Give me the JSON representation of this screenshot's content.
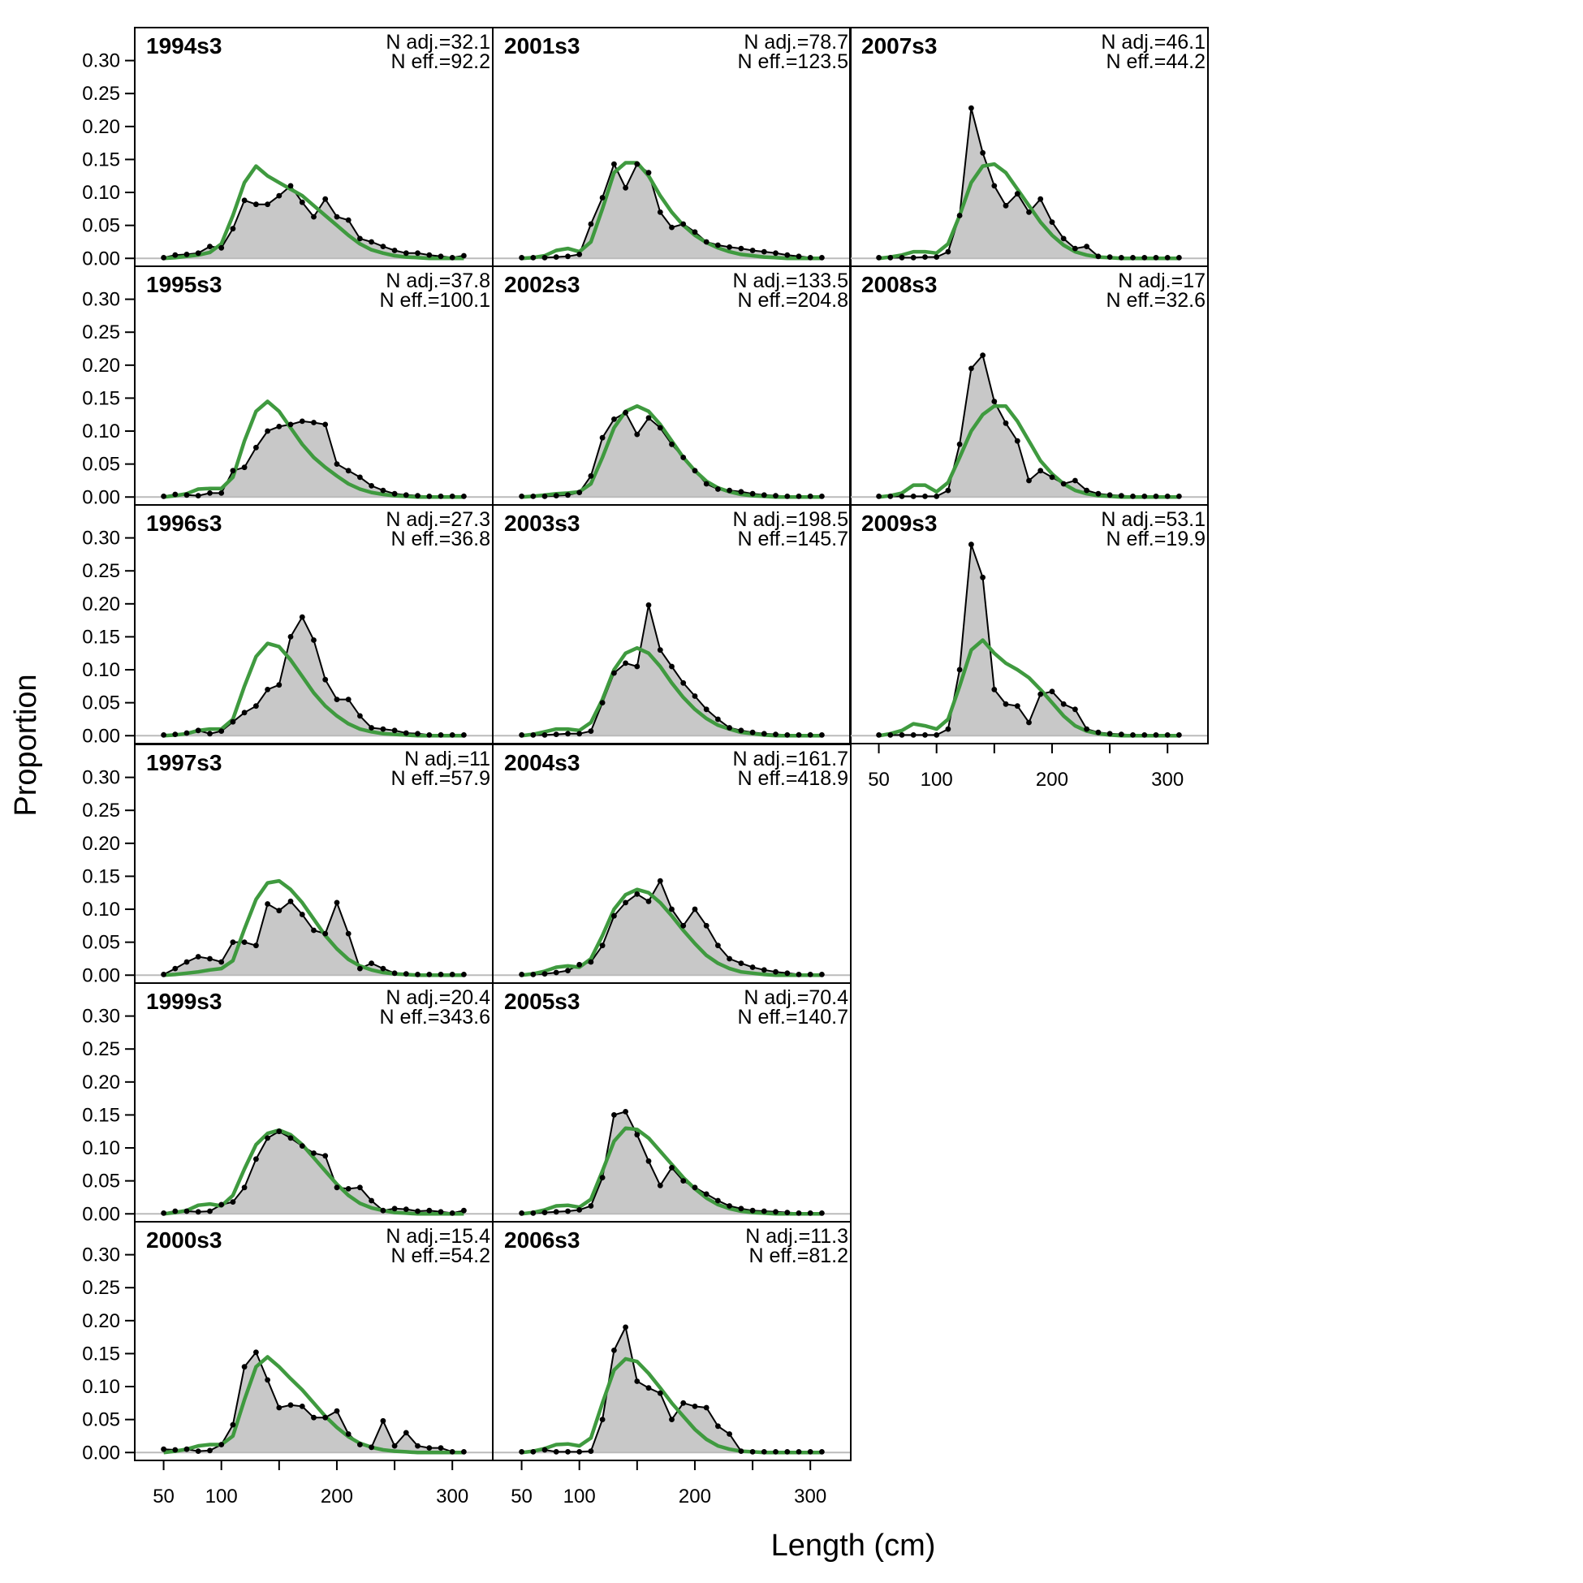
{
  "chart_data": {
    "type": "area",
    "xlabel": "Length (cm)",
    "ylabel": "Proportion",
    "xlim": [
      25,
      335
    ],
    "ylim": [
      -0.012,
      0.35
    ],
    "x_ticks": [
      50,
      100,
      200,
      300
    ],
    "x_minor_ticks": [
      50,
      100,
      150,
      200,
      250,
      300
    ],
    "y_ticks": [
      "0.00",
      "0.05",
      "0.10",
      "0.15",
      "0.20",
      "0.25",
      "0.30"
    ],
    "x": [
      50,
      60,
      70,
      80,
      90,
      100,
      110,
      120,
      130,
      140,
      150,
      160,
      170,
      180,
      190,
      200,
      210,
      220,
      230,
      240,
      250,
      260,
      270,
      280,
      290,
      300,
      310
    ],
    "colors": {
      "observed_fill": "#c8c8c8",
      "observed_line": "#000000",
      "expected_line": "#3f9a3f",
      "zero_line": "#bbbbbb"
    },
    "series_roles": [
      "observed",
      "expected"
    ],
    "panels": [
      {
        "title": "1994s3",
        "n_adj": "N adj.=32.1",
        "n_eff": "N eff.=92.2",
        "observed": [
          0.001,
          0.005,
          0.006,
          0.008,
          0.018,
          0.016,
          0.045,
          0.088,
          0.082,
          0.082,
          0.095,
          0.11,
          0.085,
          0.063,
          0.09,
          0.063,
          0.058,
          0.03,
          0.025,
          0.018,
          0.012,
          0.008,
          0.008,
          0.005,
          0.003,
          0.001,
          0.004
        ],
        "expected": [
          0.0,
          0.001,
          0.003,
          0.005,
          0.009,
          0.022,
          0.065,
          0.115,
          0.14,
          0.125,
          0.115,
          0.105,
          0.095,
          0.08,
          0.065,
          0.05,
          0.035,
          0.022,
          0.013,
          0.008,
          0.004,
          0.002,
          0.001,
          0.0,
          0.0,
          0.0,
          0.0
        ]
      },
      {
        "title": "1995s3",
        "n_adj": "N adj.=37.8",
        "n_eff": "N eff.=100.1",
        "observed": [
          0.001,
          0.004,
          0.003,
          0.002,
          0.006,
          0.006,
          0.04,
          0.045,
          0.075,
          0.1,
          0.107,
          0.11,
          0.115,
          0.113,
          0.11,
          0.05,
          0.04,
          0.03,
          0.017,
          0.01,
          0.005,
          0.003,
          0.002,
          0.001,
          0.001,
          0.001,
          0.001
        ],
        "expected": [
          0.0,
          0.002,
          0.005,
          0.012,
          0.013,
          0.013,
          0.03,
          0.085,
          0.13,
          0.145,
          0.13,
          0.105,
          0.08,
          0.06,
          0.045,
          0.032,
          0.02,
          0.012,
          0.007,
          0.004,
          0.002,
          0.001,
          0.0,
          0.0,
          0.0,
          0.0,
          0.0
        ]
      },
      {
        "title": "1996s3",
        "n_adj": "N adj.=27.3",
        "n_eff": "N eff.=36.8",
        "observed": [
          0.001,
          0.002,
          0.004,
          0.008,
          0.003,
          0.007,
          0.021,
          0.035,
          0.045,
          0.07,
          0.077,
          0.15,
          0.18,
          0.145,
          0.085,
          0.055,
          0.055,
          0.03,
          0.012,
          0.01,
          0.008,
          0.004,
          0.003,
          0.001,
          0.001,
          0.001,
          0.001
        ],
        "expected": [
          0.0,
          0.001,
          0.003,
          0.008,
          0.01,
          0.01,
          0.025,
          0.075,
          0.12,
          0.14,
          0.135,
          0.115,
          0.09,
          0.065,
          0.045,
          0.03,
          0.018,
          0.01,
          0.006,
          0.003,
          0.002,
          0.001,
          0.0,
          0.0,
          0.0,
          0.0,
          0.0
        ]
      },
      {
        "title": "1997s3",
        "n_adj": "N adj.=11",
        "n_eff": "N eff.=57.9",
        "observed": [
          0.001,
          0.01,
          0.02,
          0.028,
          0.025,
          0.02,
          0.05,
          0.05,
          0.045,
          0.108,
          0.098,
          0.112,
          0.092,
          0.068,
          0.063,
          0.11,
          0.063,
          0.01,
          0.018,
          0.01,
          0.003,
          0.002,
          0.001,
          0.001,
          0.001,
          0.001,
          0.001
        ],
        "expected": [
          0.0,
          0.001,
          0.003,
          0.005,
          0.008,
          0.01,
          0.022,
          0.07,
          0.115,
          0.14,
          0.143,
          0.13,
          0.11,
          0.085,
          0.06,
          0.04,
          0.024,
          0.014,
          0.008,
          0.004,
          0.002,
          0.001,
          0.0,
          0.0,
          0.0,
          0.0,
          0.0
        ]
      },
      {
        "title": "1999s3",
        "n_adj": "N adj.=20.4",
        "n_eff": "N eff.=343.6",
        "observed": [
          0.001,
          0.004,
          0.004,
          0.003,
          0.004,
          0.014,
          0.018,
          0.04,
          0.083,
          0.115,
          0.125,
          0.115,
          0.103,
          0.092,
          0.088,
          0.04,
          0.038,
          0.04,
          0.02,
          0.005,
          0.008,
          0.007,
          0.004,
          0.005,
          0.003,
          0.001,
          0.005
        ],
        "expected": [
          0.0,
          0.002,
          0.005,
          0.013,
          0.015,
          0.012,
          0.028,
          0.068,
          0.105,
          0.122,
          0.127,
          0.12,
          0.105,
          0.085,
          0.065,
          0.045,
          0.028,
          0.016,
          0.009,
          0.005,
          0.002,
          0.001,
          0.0,
          0.0,
          0.0,
          0.0,
          0.0
        ]
      },
      {
        "title": "2000s3",
        "n_adj": "N adj.=15.4",
        "n_eff": "N eff.=54.2",
        "observed": [
          0.005,
          0.004,
          0.005,
          0.002,
          0.003,
          0.012,
          0.042,
          0.13,
          0.152,
          0.11,
          0.068,
          0.072,
          0.07,
          0.053,
          0.053,
          0.063,
          0.028,
          0.012,
          0.008,
          0.048,
          0.01,
          0.03,
          0.01,
          0.007,
          0.007,
          0.001,
          0.001
        ],
        "expected": [
          0.0,
          0.002,
          0.005,
          0.01,
          0.012,
          0.012,
          0.025,
          0.08,
          0.13,
          0.145,
          0.13,
          0.112,
          0.095,
          0.075,
          0.055,
          0.038,
          0.024,
          0.014,
          0.008,
          0.004,
          0.002,
          0.001,
          0.0,
          0.0,
          0.0,
          0.0,
          0.0
        ]
      },
      {
        "title": "2001s3",
        "n_adj": "N adj.=78.7",
        "n_eff": "N eff.=123.5",
        "observed": [
          0.001,
          0.001,
          0.001,
          0.002,
          0.003,
          0.006,
          0.052,
          0.092,
          0.143,
          0.107,
          0.143,
          0.13,
          0.07,
          0.047,
          0.052,
          0.04,
          0.025,
          0.02,
          0.017,
          0.015,
          0.012,
          0.01,
          0.008,
          0.005,
          0.003,
          0.001,
          0.001
        ],
        "expected": [
          0.0,
          0.001,
          0.004,
          0.012,
          0.015,
          0.01,
          0.025,
          0.075,
          0.13,
          0.145,
          0.145,
          0.125,
          0.095,
          0.07,
          0.05,
          0.035,
          0.024,
          0.016,
          0.01,
          0.006,
          0.004,
          0.002,
          0.001,
          0.0,
          0.0,
          0.0,
          0.0
        ]
      },
      {
        "title": "2002s3",
        "n_adj": "N adj.=133.5",
        "n_eff": "N eff.=204.8",
        "observed": [
          0.001,
          0.001,
          0.001,
          0.002,
          0.003,
          0.007,
          0.032,
          0.09,
          0.118,
          0.128,
          0.095,
          0.12,
          0.105,
          0.08,
          0.06,
          0.04,
          0.02,
          0.012,
          0.01,
          0.008,
          0.005,
          0.003,
          0.002,
          0.001,
          0.001,
          0.001,
          0.001
        ],
        "expected": [
          0.0,
          0.001,
          0.003,
          0.005,
          0.006,
          0.008,
          0.02,
          0.06,
          0.105,
          0.13,
          0.138,
          0.13,
          0.11,
          0.085,
          0.06,
          0.04,
          0.024,
          0.014,
          0.008,
          0.004,
          0.002,
          0.001,
          0.0,
          0.0,
          0.0,
          0.0,
          0.0
        ]
      },
      {
        "title": "2003s3",
        "n_adj": "N adj.=198.5",
        "n_eff": "N eff.=145.7",
        "observed": [
          0.001,
          0.001,
          0.001,
          0.002,
          0.003,
          0.003,
          0.007,
          0.05,
          0.095,
          0.11,
          0.105,
          0.198,
          0.13,
          0.105,
          0.08,
          0.06,
          0.04,
          0.025,
          0.012,
          0.008,
          0.005,
          0.003,
          0.002,
          0.001,
          0.001,
          0.001,
          0.001
        ],
        "expected": [
          0.0,
          0.002,
          0.006,
          0.01,
          0.01,
          0.008,
          0.02,
          0.055,
          0.1,
          0.125,
          0.133,
          0.125,
          0.105,
          0.08,
          0.058,
          0.04,
          0.026,
          0.016,
          0.01,
          0.005,
          0.003,
          0.001,
          0.0,
          0.0,
          0.0,
          0.0,
          0.0
        ]
      },
      {
        "title": "2004s3",
        "n_adj": "N adj.=161.7",
        "n_eff": "N eff.=418.9",
        "observed": [
          0.001,
          0.001,
          0.002,
          0.004,
          0.007,
          0.016,
          0.02,
          0.045,
          0.09,
          0.11,
          0.123,
          0.112,
          0.143,
          0.1,
          0.075,
          0.1,
          0.075,
          0.045,
          0.025,
          0.018,
          0.012,
          0.008,
          0.005,
          0.003,
          0.001,
          0.001,
          0.001
        ],
        "expected": [
          0.0,
          0.002,
          0.006,
          0.012,
          0.014,
          0.012,
          0.025,
          0.06,
          0.1,
          0.122,
          0.13,
          0.125,
          0.11,
          0.09,
          0.068,
          0.048,
          0.03,
          0.018,
          0.01,
          0.005,
          0.003,
          0.001,
          0.0,
          0.0,
          0.0,
          0.0,
          0.0
        ]
      },
      {
        "title": "2005s3",
        "n_adj": "N adj.=70.4",
        "n_eff": "N eff.=140.7",
        "observed": [
          0.001,
          0.001,
          0.002,
          0.003,
          0.004,
          0.006,
          0.012,
          0.055,
          0.15,
          0.155,
          0.12,
          0.08,
          0.043,
          0.07,
          0.05,
          0.04,
          0.03,
          0.02,
          0.012,
          0.008,
          0.005,
          0.004,
          0.003,
          0.002,
          0.001,
          0.001,
          0.001
        ],
        "expected": [
          0.0,
          0.002,
          0.006,
          0.012,
          0.013,
          0.01,
          0.022,
          0.065,
          0.11,
          0.13,
          0.128,
          0.115,
          0.095,
          0.075,
          0.055,
          0.038,
          0.024,
          0.014,
          0.008,
          0.004,
          0.002,
          0.001,
          0.0,
          0.0,
          0.0,
          0.0,
          0.0
        ]
      },
      {
        "title": "2006s3",
        "n_adj": "N adj.=11.3",
        "n_eff": "N eff.=81.2",
        "observed": [
          0.001,
          0.001,
          0.004,
          0.001,
          0.001,
          0.001,
          0.002,
          0.05,
          0.155,
          0.19,
          0.108,
          0.098,
          0.09,
          0.05,
          0.075,
          0.07,
          0.068,
          0.04,
          0.028,
          0.002,
          0.001,
          0.001,
          0.001,
          0.001,
          0.001,
          0.001,
          0.001
        ],
        "expected": [
          0.0,
          0.002,
          0.006,
          0.012,
          0.013,
          0.01,
          0.022,
          0.075,
          0.125,
          0.142,
          0.138,
          0.12,
          0.098,
          0.075,
          0.055,
          0.035,
          0.02,
          0.01,
          0.005,
          0.002,
          0.001,
          0.0,
          0.0,
          0.0,
          0.0,
          0.0,
          0.0
        ]
      },
      {
        "title": "2007s3",
        "n_adj": "N adj.=46.1",
        "n_eff": "N eff.=44.2",
        "observed": [
          0.001,
          0.001,
          0.001,
          0.001,
          0.002,
          0.002,
          0.01,
          0.065,
          0.228,
          0.16,
          0.11,
          0.08,
          0.098,
          0.07,
          0.09,
          0.055,
          0.03,
          0.015,
          0.018,
          0.003,
          0.002,
          0.001,
          0.001,
          0.001,
          0.001,
          0.001,
          0.001
        ],
        "expected": [
          0.0,
          0.002,
          0.005,
          0.01,
          0.01,
          0.008,
          0.022,
          0.065,
          0.115,
          0.14,
          0.143,
          0.13,
          0.105,
          0.08,
          0.055,
          0.035,
          0.02,
          0.01,
          0.005,
          0.002,
          0.001,
          0.0,
          0.0,
          0.0,
          0.0,
          0.0,
          0.0
        ]
      },
      {
        "title": "2008s3",
        "n_adj": "N adj.=17",
        "n_eff": "N eff.=32.6",
        "observed": [
          0.001,
          0.001,
          0.001,
          0.001,
          0.001,
          0.001,
          0.01,
          0.08,
          0.195,
          0.215,
          0.145,
          0.112,
          0.085,
          0.025,
          0.04,
          0.03,
          0.02,
          0.025,
          0.01,
          0.005,
          0.003,
          0.002,
          0.001,
          0.001,
          0.001,
          0.001,
          0.001
        ],
        "expected": [
          0.0,
          0.002,
          0.006,
          0.018,
          0.018,
          0.008,
          0.022,
          0.06,
          0.1,
          0.125,
          0.138,
          0.138,
          0.115,
          0.085,
          0.055,
          0.035,
          0.02,
          0.01,
          0.005,
          0.002,
          0.001,
          0.0,
          0.0,
          0.0,
          0.0,
          0.0,
          0.0
        ]
      },
      {
        "title": "2009s3",
        "n_adj": "N adj.=53.1",
        "n_eff": "N eff.=19.9",
        "observed": [
          0.001,
          0.001,
          0.001,
          0.001,
          0.001,
          0.001,
          0.01,
          0.1,
          0.29,
          0.24,
          0.07,
          0.048,
          0.045,
          0.02,
          0.063,
          0.067,
          0.048,
          0.04,
          0.01,
          0.005,
          0.003,
          0.002,
          0.001,
          0.001,
          0.001,
          0.001,
          0.001
        ],
        "expected": [
          0.0,
          0.003,
          0.008,
          0.018,
          0.015,
          0.01,
          0.025,
          0.075,
          0.13,
          0.145,
          0.125,
          0.11,
          0.1,
          0.088,
          0.07,
          0.05,
          0.03,
          0.015,
          0.007,
          0.003,
          0.001,
          0.0,
          0.0,
          0.0,
          0.0,
          0.0,
          0.0
        ]
      }
    ]
  }
}
